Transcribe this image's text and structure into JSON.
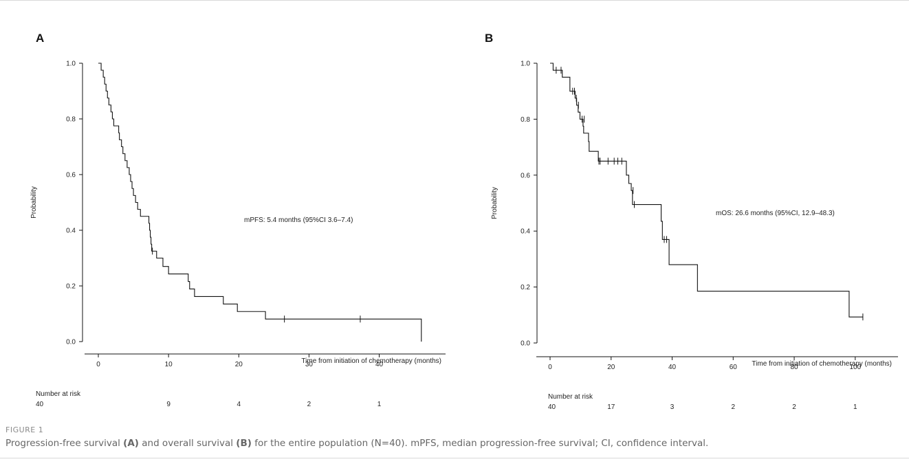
{
  "chart_data": [
    {
      "type": "line",
      "panel": "A",
      "xlabel": "Time from initiation of chemotherapy (months)",
      "ylabel": "Probability",
      "xlim": [
        0,
        47
      ],
      "ylim": [
        0,
        1.0
      ],
      "x_ticks": [
        0,
        10,
        20,
        30,
        40
      ],
      "y_ticks": [
        0.0,
        0.2,
        0.4,
        0.6,
        0.8,
        1.0
      ],
      "annotation": "mPFS: 5.4 months (95%CI 3.6–7.4)",
      "risk_table_label": "Number at risk",
      "risk_table": [
        {
          "x": 0,
          "n": "40"
        },
        {
          "x": 10,
          "n": "9"
        },
        {
          "x": 20,
          "n": "4"
        },
        {
          "x": 30,
          "n": "2"
        },
        {
          "x": 40,
          "n": "1"
        }
      ],
      "curve": [
        [
          0,
          1.0
        ],
        [
          0.4,
          0.975
        ],
        [
          0.7,
          0.95
        ],
        [
          0.9,
          0.925
        ],
        [
          1.1,
          0.9
        ],
        [
          1.3,
          0.875
        ],
        [
          1.5,
          0.85
        ],
        [
          1.8,
          0.825
        ],
        [
          2.0,
          0.8
        ],
        [
          2.2,
          0.775
        ],
        [
          2.9,
          0.75
        ],
        [
          3.0,
          0.725
        ],
        [
          3.3,
          0.7
        ],
        [
          3.5,
          0.675
        ],
        [
          3.8,
          0.65
        ],
        [
          4.1,
          0.625
        ],
        [
          4.4,
          0.6
        ],
        [
          4.6,
          0.575
        ],
        [
          4.8,
          0.55
        ],
        [
          5.0,
          0.525
        ],
        [
          5.3,
          0.5
        ],
        [
          5.6,
          0.475
        ],
        [
          6.0,
          0.45
        ],
        [
          7.2,
          0.425
        ],
        [
          7.3,
          0.4
        ],
        [
          7.4,
          0.375
        ],
        [
          7.5,
          0.35
        ],
        [
          7.6,
          0.325
        ],
        [
          8.3,
          0.3
        ],
        [
          9.2,
          0.27
        ],
        [
          10.0,
          0.243
        ],
        [
          12.8,
          0.216
        ],
        [
          13.0,
          0.189
        ],
        [
          13.7,
          0.162
        ],
        [
          17.8,
          0.135
        ],
        [
          19.8,
          0.108
        ],
        [
          23.8,
          0.081
        ],
        [
          46,
          0.0
        ]
      ],
      "censored": [
        [
          7.7,
          0.325
        ],
        [
          26.5,
          0.081
        ],
        [
          37.3,
          0.081
        ]
      ]
    },
    {
      "type": "line",
      "panel": "B",
      "xlabel": "Time from initiation of chemotherapy (months)",
      "ylabel": "Probability",
      "xlim": [
        0,
        105
      ],
      "ylim": [
        0,
        1.0
      ],
      "x_ticks": [
        0,
        20,
        40,
        60,
        80,
        100
      ],
      "y_ticks": [
        0.0,
        0.2,
        0.4,
        0.6,
        0.8,
        1.0
      ],
      "annotation": "mOS: 26.6 months (95%CI, 12.9–48.3)",
      "risk_table_label": "Number at risk",
      "risk_table": [
        {
          "x": 0,
          "n": "40"
        },
        {
          "x": 20,
          "n": "17"
        },
        {
          "x": 40,
          "n": "3"
        },
        {
          "x": 60,
          "n": "2"
        },
        {
          "x": 80,
          "n": "2"
        },
        {
          "x": 100,
          "n": "1"
        }
      ],
      "curve": [
        [
          0,
          1.0
        ],
        [
          1.0,
          0.975
        ],
        [
          4.0,
          0.95
        ],
        [
          6.5,
          0.9
        ],
        [
          8.2,
          0.875
        ],
        [
          8.7,
          0.85
        ],
        [
          9.2,
          0.825
        ],
        [
          9.8,
          0.8
        ],
        [
          10.8,
          0.775
        ],
        [
          11.0,
          0.75
        ],
        [
          12.6,
          0.72
        ],
        [
          12.8,
          0.685
        ],
        [
          15.8,
          0.65
        ],
        [
          25.0,
          0.6
        ],
        [
          25.8,
          0.57
        ],
        [
          26.6,
          0.545
        ],
        [
          27.0,
          0.495
        ],
        [
          36.4,
          0.435
        ],
        [
          36.8,
          0.37
        ],
        [
          39.0,
          0.28
        ],
        [
          48.3,
          0.185
        ],
        [
          98.0,
          0.093
        ]
      ],
      "censored": [
        [
          2.0,
          0.975
        ],
        [
          3.6,
          0.975
        ],
        [
          7.4,
          0.9
        ],
        [
          8.0,
          0.9
        ],
        [
          8.6,
          0.875
        ],
        [
          9.3,
          0.85
        ],
        [
          10.5,
          0.8
        ],
        [
          11.2,
          0.8
        ],
        [
          16.0,
          0.65
        ],
        [
          16.4,
          0.65
        ],
        [
          19.0,
          0.65
        ],
        [
          21.0,
          0.65
        ],
        [
          22.2,
          0.65
        ],
        [
          23.5,
          0.65
        ],
        [
          27.2,
          0.545
        ],
        [
          27.6,
          0.495
        ],
        [
          37.4,
          0.37
        ],
        [
          38.2,
          0.37
        ],
        [
          102.5,
          0.093
        ]
      ]
    }
  ],
  "panels": {
    "a_letter": "A",
    "b_letter": "B"
  },
  "caption": {
    "label": "FIGURE 1",
    "text_1": "Progression-free survival ",
    "ref_a": "(A)",
    "text_2": " and overall survival ",
    "ref_b": "(B)",
    "text_3": " for the entire population (N=40). mPFS, median progression-free survival; CI, confidence interval."
  }
}
